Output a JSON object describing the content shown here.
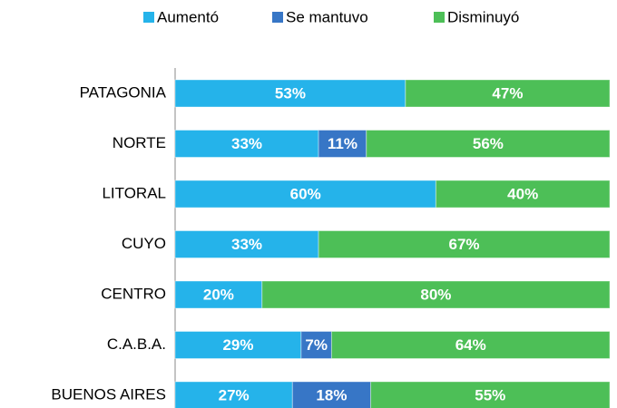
{
  "chart_data": {
    "type": "stacked_barh",
    "categories": [
      "PATAGONIA",
      "NORTE",
      "LITORAL",
      "CUYO",
      "CENTRO",
      "C.A.B.A.",
      "BUENOS AIRES"
    ],
    "series": [
      {
        "name": "Aumentó",
        "color": "#25b3ea",
        "values": [
          53,
          33,
          60,
          33,
          20,
          29,
          27
        ],
        "value_labels": [
          "53%",
          "33%",
          "60%",
          "33%",
          "20%",
          "29%",
          "27%"
        ]
      },
      {
        "name": "Se mantuvo",
        "color": "#3776c6",
        "values": [
          null,
          11,
          null,
          null,
          null,
          7,
          18
        ],
        "value_labels": [
          null,
          "11%",
          null,
          null,
          null,
          "7%",
          "18%"
        ]
      },
      {
        "name": "Disminuyó",
        "color": "#4dbf57",
        "values": [
          47,
          56,
          40,
          67,
          80,
          64,
          55
        ],
        "value_labels": [
          "47%",
          "56%",
          "40%",
          "67%",
          "80%",
          "64%",
          "55%"
        ]
      }
    ],
    "xlim": [
      0,
      100
    ],
    "legend": "top"
  }
}
